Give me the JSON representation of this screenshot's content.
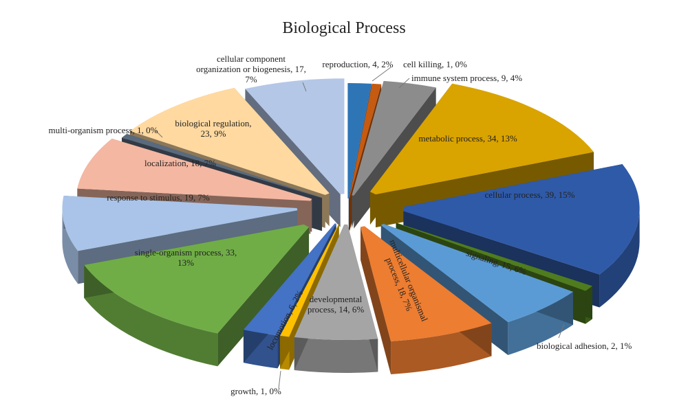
{
  "chart_data": {
    "type": "pie",
    "title": "Biological Process",
    "exploded": true,
    "three_d": true,
    "slices": [
      {
        "label": "reproduction, 4, 2%",
        "name": "reproduction",
        "value": 4,
        "percent": "2%",
        "color": "#2e75b6"
      },
      {
        "label": "cell killing, 1, 0%",
        "name": "cell killing",
        "value": 1,
        "percent": "0%",
        "color": "#c55a11"
      },
      {
        "label": "immune system process, 9, 4%",
        "name": "immune system process",
        "value": 9,
        "percent": "4%",
        "color": "#8c8c8c"
      },
      {
        "label": "metabolic process, 34, 13%",
        "name": "metabolic process",
        "value": 34,
        "percent": "13%",
        "color": "#d9a300"
      },
      {
        "label": "cellular process, 39, 15%",
        "name": "cellular process",
        "value": 39,
        "percent": "15%",
        "color": "#2f5aa8"
      },
      {
        "label": "biological adhesion, 2, 1%",
        "name": "biological adhesion",
        "value": 2,
        "percent": "1%",
        "color": "#4f7c1f"
      },
      {
        "label": "signaling, 15, 6%",
        "name": "signaling",
        "value": 15,
        "percent": "6%",
        "color": "#5b9bd5"
      },
      {
        "label": "multicellular organismal process, 18, 7%",
        "name": "multicellular organismal process",
        "value": 18,
        "percent": "7%",
        "color": "#ed7d31"
      },
      {
        "label": "developmental process, 14, 6%",
        "name": "developmental process",
        "value": 14,
        "percent": "6%",
        "color": "#a5a5a5"
      },
      {
        "label": "growth, 1, 0%",
        "name": "growth",
        "value": 1,
        "percent": "0%",
        "color": "#ffc000"
      },
      {
        "label": "locomotion, 6, 2%",
        "name": "locomotion",
        "value": 6,
        "percent": "2%",
        "color": "#4472c4"
      },
      {
        "label": "single-organism process, 33, 13%",
        "name": "single-organism process",
        "value": 33,
        "percent": "13%",
        "color": "#70ad47"
      },
      {
        "label": "response to stimulus, 19, 7%",
        "name": "response to stimulus",
        "value": 19,
        "percent": "7%",
        "color": "#a9c4e8"
      },
      {
        "label": "localization, 18, 7%",
        "name": "localization",
        "value": 18,
        "percent": "7%",
        "color": "#f4b7a2"
      },
      {
        "label": "multi-organism process, 1, 0%",
        "name": "multi-organism process",
        "value": 1,
        "percent": "0%",
        "color": "#5a6a7d"
      },
      {
        "label": "biological regulation, 23, 9%",
        "name": "biological regulation",
        "value": 23,
        "percent": "9%",
        "color": "#ffd9a0"
      },
      {
        "label": "cellular component organization or biogenesis, 17, 7%",
        "name": "cellular component organization or biogenesis",
        "value": 17,
        "percent": "7%",
        "color": "#b4c7e7"
      }
    ]
  }
}
